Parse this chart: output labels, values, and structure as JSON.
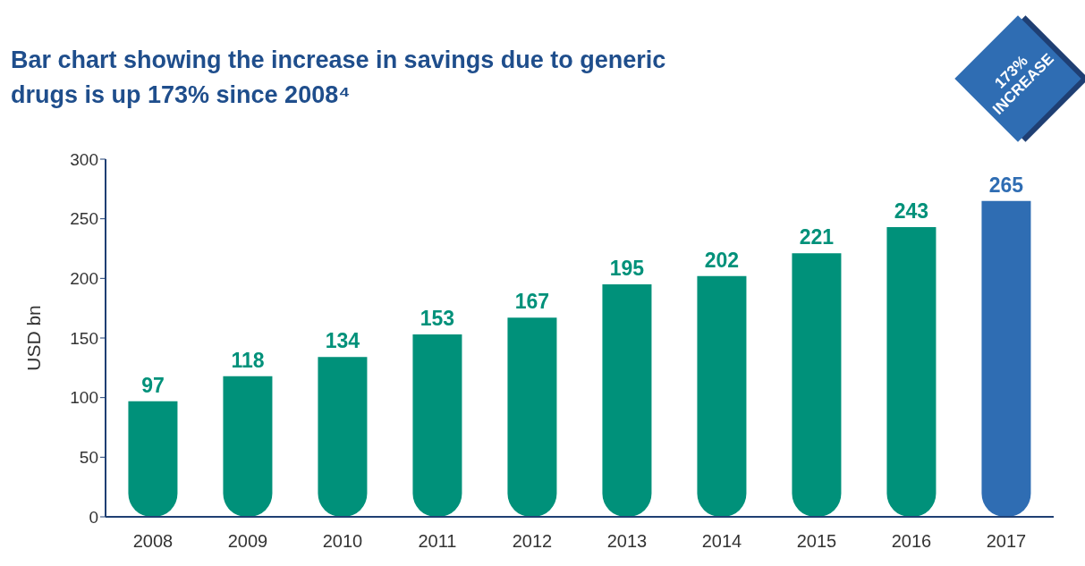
{
  "chart_data": {
    "type": "bar",
    "title": "Bar chart showing the increase in savings due to generic drugs is up 173% since 2008⁴",
    "ylabel": "USD bn",
    "categories": [
      "2008",
      "2009",
      "2010",
      "2011",
      "2012",
      "2013",
      "2014",
      "2015",
      "2016",
      "2017"
    ],
    "values": [
      97,
      118,
      134,
      153,
      167,
      195,
      202,
      221,
      243,
      265
    ],
    "colors": [
      "#00917a",
      "#00917a",
      "#00917a",
      "#00917a",
      "#00917a",
      "#00917a",
      "#00917a",
      "#00917a",
      "#00917a",
      "#2f6db3"
    ],
    "ylim": [
      0,
      300
    ],
    "yticks": [
      0,
      50,
      100,
      150,
      200,
      250,
      300
    ],
    "grid": false,
    "data_labels": true,
    "annotations": [
      "173% INCREASE"
    ]
  }
}
